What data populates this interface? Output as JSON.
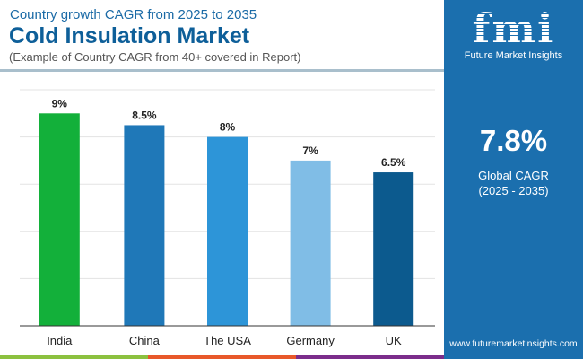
{
  "header": {
    "subtitle": "Country growth CAGR from 2025 to 2035",
    "title": "Cold Insulation Market",
    "note": "(Example of Country CAGR from 40+ covered in Report)"
  },
  "sidebar": {
    "logo_text": "fmi",
    "logo_name": "Future Market Insights",
    "global_value": "7.8%",
    "global_label": "Global CAGR",
    "global_period": "(2025 - 2035)",
    "url": "www.futuremarketinsights.com"
  },
  "colors": {
    "panel": "#1b6fae",
    "footer": [
      "#8cc13f",
      "#e8582a",
      "#7b2d8b"
    ]
  },
  "chart_data": {
    "type": "bar",
    "title": "Cold Insulation Market",
    "categories": [
      "India",
      "China",
      "The USA",
      "Germany",
      "UK"
    ],
    "values": [
      9,
      8.5,
      8,
      7,
      6.5
    ],
    "labels": [
      "9%",
      "8.5%",
      "8%",
      "7%",
      "6.5%"
    ],
    "colors": [
      "#13b03a",
      "#1f78b8",
      "#2d95d8",
      "#80bde6",
      "#0c5a8e"
    ],
    "unit": "%",
    "ylim": [
      0,
      10
    ],
    "grid": true,
    "grid_step": 2,
    "xlabel": "",
    "ylabel": ""
  }
}
